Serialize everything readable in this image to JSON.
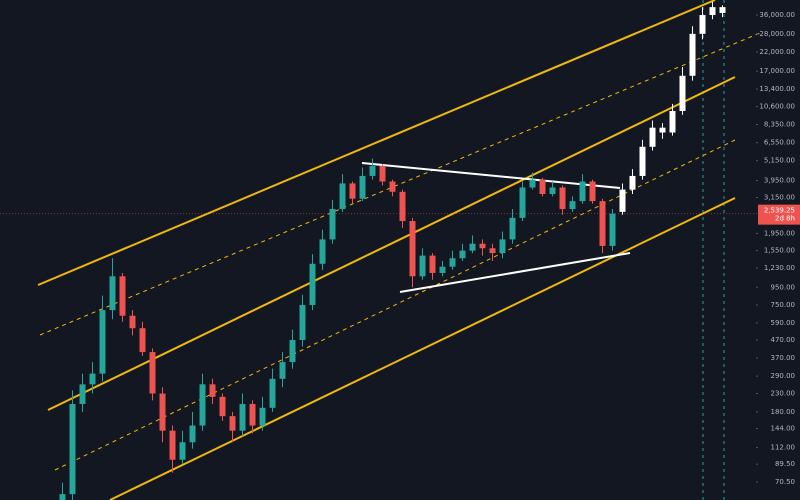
{
  "chart_data": {
    "type": "candlestick",
    "log_scale": true,
    "grid": false,
    "ylim": [
      55.5,
      44000
    ],
    "yticks": [
      {
        "value": 36000,
        "label": "36,000.00"
      },
      {
        "value": 28000,
        "label": "28,000.00"
      },
      {
        "value": 22000,
        "label": "22,000.00"
      },
      {
        "value": 17000,
        "label": "17,000.00"
      },
      {
        "value": 13400,
        "label": "13,400.00"
      },
      {
        "value": 10600,
        "label": "10,600.00"
      },
      {
        "value": 8350,
        "label": "8,350.00"
      },
      {
        "value": 6550,
        "label": "6,550.00"
      },
      {
        "value": 5150,
        "label": "5,150.00"
      },
      {
        "value": 3950,
        "label": "3,950.00"
      },
      {
        "value": 3150,
        "label": "3,150.00"
      },
      {
        "value": 1950,
        "label": "1,950.00"
      },
      {
        "value": 1550,
        "label": "1,550.00"
      },
      {
        "value": 1230,
        "label": "1,230.00"
      },
      {
        "value": 950,
        "label": "950.00"
      },
      {
        "value": 750,
        "label": "750.00"
      },
      {
        "value": 590,
        "label": "590.00"
      },
      {
        "value": 470,
        "label": "470.00"
      },
      {
        "value": 370,
        "label": "370.00"
      },
      {
        "value": 290,
        "label": "290.00"
      },
      {
        "value": 230,
        "label": "230.00"
      },
      {
        "value": 180,
        "label": "180.00"
      },
      {
        "value": 144,
        "label": "144.00"
      },
      {
        "value": 112,
        "label": "112.00"
      },
      {
        "value": 89.5,
        "label": "89.50"
      },
      {
        "value": 70.5,
        "label": "70.50"
      }
    ],
    "last_price": {
      "value": 2539.25,
      "label": "2,539.25",
      "countdown": "2d 8h",
      "color": "#ef5350"
    },
    "categories": [
      null,
      null,
      null,
      null,
      null,
      null,
      null,
      null,
      null,
      null,
      null,
      null,
      null,
      null,
      null,
      null,
      null,
      null,
      null,
      null,
      null,
      null,
      null,
      null,
      null,
      null,
      null,
      null,
      null,
      null,
      null,
      null,
      null,
      null,
      null,
      null,
      null,
      null,
      null,
      null,
      null,
      null,
      null,
      null,
      null,
      null,
      null,
      null,
      null,
      null,
      null,
      null,
      null,
      null,
      null,
      null,
      null,
      null,
      null,
      null,
      null,
      null,
      null,
      null,
      null,
      null,
      null
    ],
    "series": [
      {
        "up_color": "#26a69a",
        "down_color": "#ef5350",
        "open": [
          55,
          60,
          200,
          260,
          300,
          700,
          1100,
          650,
          550,
          400,
          230,
          140,
          95,
          120,
          150,
          260,
          220,
          170,
          140,
          200,
          150,
          190,
          280,
          350,
          470,
          750,
          1300,
          1800,
          2700,
          3800,
          3100,
          4200,
          4800,
          3900,
          3400,
          2300,
          1100,
          1450,
          1150,
          1250,
          1400,
          1550,
          1700,
          1600,
          1500,
          1800,
          2400,
          3600,
          4000,
          3300,
          3600,
          2700,
          3000,
          3900,
          3000,
          1650
        ],
        "high": [
          70,
          240,
          300,
          350,
          850,
          1400,
          1150,
          700,
          600,
          420,
          250,
          150,
          140,
          180,
          300,
          280,
          230,
          180,
          230,
          210,
          220,
          320,
          400,
          540,
          860,
          1480,
          2050,
          3050,
          4300,
          3900,
          4700,
          5300,
          4900,
          4000,
          3500,
          2400,
          1600,
          1500,
          1350,
          1550,
          1700,
          1900,
          1800,
          1700,
          2000,
          2700,
          3900,
          4400,
          4100,
          3900,
          3700,
          3200,
          4300,
          4000,
          3100,
          2700
        ],
        "low": [
          45,
          55,
          180,
          230,
          270,
          620,
          600,
          500,
          380,
          210,
          120,
          80,
          90,
          110,
          140,
          200,
          160,
          120,
          130,
          135,
          140,
          180,
          250,
          320,
          430,
          700,
          1200,
          1700,
          2600,
          2900,
          3000,
          4000,
          3700,
          3200,
          2100,
          950,
          1050,
          1050,
          1100,
          1200,
          1350,
          1500,
          1450,
          1350,
          1400,
          1700,
          2300,
          3500,
          3200,
          3200,
          2500,
          2600,
          2900,
          2900,
          1500,
          1550
        ],
        "close": [
          60,
          200,
          260,
          300,
          700,
          1100,
          650,
          550,
          400,
          230,
          140,
          95,
          120,
          150,
          260,
          220,
          170,
          140,
          200,
          150,
          190,
          280,
          350,
          470,
          750,
          1300,
          1800,
          2700,
          3800,
          3100,
          4200,
          4800,
          3900,
          3400,
          2300,
          1100,
          1450,
          1150,
          1250,
          1400,
          1550,
          1700,
          1600,
          1500,
          1800,
          2400,
          3600,
          4000,
          3300,
          3600,
          2700,
          3000,
          3900,
          3000,
          1650,
          2539.25
        ]
      },
      {
        "color": "#ffffff",
        "open": [
          null,
          null,
          null,
          null,
          null,
          null,
          null,
          null,
          null,
          null,
          null,
          null,
          null,
          null,
          null,
          null,
          null,
          null,
          null,
          null,
          null,
          null,
          null,
          null,
          null,
          null,
          null,
          null,
          null,
          null,
          null,
          null,
          null,
          null,
          null,
          null,
          null,
          null,
          null,
          null,
          null,
          null,
          null,
          null,
          null,
          null,
          null,
          null,
          null,
          null,
          null,
          null,
          null,
          null,
          null,
          null,
          2600,
          3500,
          4200,
          6200,
          8000,
          7500,
          10000,
          16000,
          28000,
          36000,
          40000
        ],
        "high": [
          null,
          null,
          null,
          null,
          null,
          null,
          null,
          null,
          null,
          null,
          null,
          null,
          null,
          null,
          null,
          null,
          null,
          null,
          null,
          null,
          null,
          null,
          null,
          null,
          null,
          null,
          null,
          null,
          null,
          null,
          null,
          null,
          null,
          null,
          null,
          null,
          null,
          null,
          null,
          null,
          null,
          null,
          null,
          null,
          null,
          null,
          null,
          null,
          null,
          null,
          null,
          null,
          null,
          null,
          null,
          null,
          3800,
          4600,
          6800,
          8800,
          8500,
          11000,
          18000,
          31000,
          40000,
          43000,
          41000
        ],
        "low": [
          null,
          null,
          null,
          null,
          null,
          null,
          null,
          null,
          null,
          null,
          null,
          null,
          null,
          null,
          null,
          null,
          null,
          null,
          null,
          null,
          null,
          null,
          null,
          null,
          null,
          null,
          null,
          null,
          null,
          null,
          null,
          null,
          null,
          null,
          null,
          null,
          null,
          null,
          null,
          null,
          null,
          null,
          null,
          null,
          null,
          null,
          null,
          null,
          null,
          null,
          null,
          null,
          null,
          null,
          null,
          null,
          2500,
          3300,
          4000,
          5900,
          6900,
          7200,
          9500,
          15000,
          26000,
          34000,
          35000
        ],
        "close": [
          null,
          null,
          null,
          null,
          null,
          null,
          null,
          null,
          null,
          null,
          null,
          null,
          null,
          null,
          null,
          null,
          null,
          null,
          null,
          null,
          null,
          null,
          null,
          null,
          null,
          null,
          null,
          null,
          null,
          null,
          null,
          null,
          null,
          null,
          null,
          null,
          null,
          null,
          null,
          null,
          null,
          null,
          null,
          null,
          null,
          null,
          null,
          null,
          null,
          null,
          null,
          null,
          null,
          null,
          null,
          null,
          3500,
          4200,
          6200,
          8000,
          7500,
          10000,
          16000,
          28000,
          36000,
          40000,
          37000
        ]
      }
    ]
  }
}
